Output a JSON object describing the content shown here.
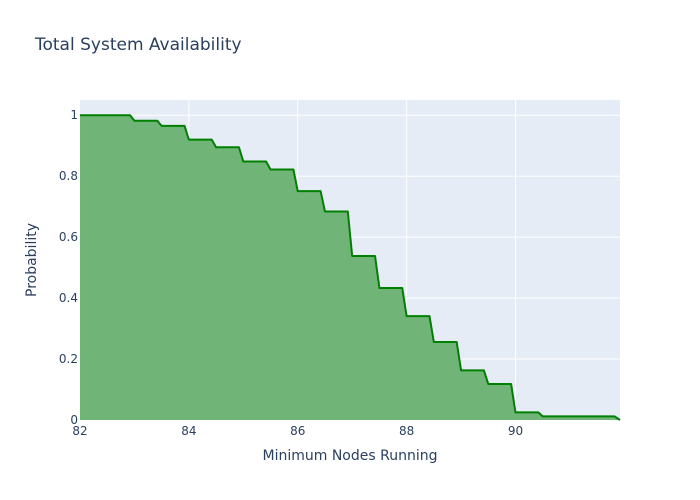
{
  "chart_data": {
    "type": "area",
    "title": "Total System Availability",
    "xlabel": "Minimum Nodes Running",
    "ylabel": "Probability",
    "xlim": [
      82,
      91.92
    ],
    "ylim": [
      0,
      1.05
    ],
    "x_ticks": [
      82,
      84,
      86,
      88,
      90
    ],
    "x_tick_labels": [
      "82",
      "84",
      "86",
      "88",
      "90"
    ],
    "y_ticks": [
      0,
      0.2,
      0.4,
      0.6,
      0.8,
      1
    ],
    "y_tick_labels": [
      "0",
      "0.2",
      "0.4",
      "0.6",
      "0.8",
      "1"
    ],
    "grid": true,
    "legend": "none",
    "colors": {
      "line": "#008000",
      "fill": "#70b577",
      "plot_background": "#e5ecf6",
      "grid": "#ffffff",
      "text": "#2a3f5f"
    },
    "x": [
      82,
      82.92,
      83,
      83.42,
      83.5,
      83.92,
      84,
      84.42,
      84.5,
      84.92,
      85,
      85.42,
      85.5,
      85.92,
      86,
      86.42,
      86.5,
      86.92,
      87,
      87.42,
      87.5,
      87.92,
      88,
      88.42,
      88.5,
      88.92,
      89,
      89.42,
      89.5,
      89.92,
      90,
      90.42,
      90.5,
      91.82,
      91.92
    ],
    "y": [
      1.0,
      1.0,
      0.982,
      0.982,
      0.965,
      0.965,
      0.92,
      0.92,
      0.895,
      0.895,
      0.848,
      0.848,
      0.822,
      0.822,
      0.751,
      0.751,
      0.684,
      0.684,
      0.538,
      0.538,
      0.433,
      0.433,
      0.341,
      0.341,
      0.256,
      0.256,
      0.163,
      0.163,
      0.118,
      0.118,
      0.025,
      0.025,
      0.012,
      0.012,
      0.0
    ]
  }
}
